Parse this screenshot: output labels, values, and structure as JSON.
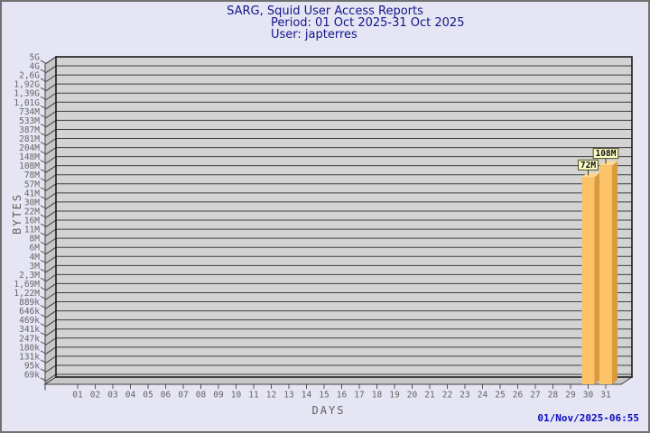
{
  "page": {
    "title_line1": "SARG, Squid User Access Reports",
    "title_line2": "Period: 01 Oct 2025-31 Oct 2025",
    "title_line3": "User: japterres",
    "generated_at": "01/Nov/2025-06:55"
  },
  "colors": {
    "background": "#e5e5f3",
    "page_border": "#717171",
    "title_text": "#15158c",
    "timestamp_text": "#0b0bc0",
    "axis_text": "#666666",
    "plot_face": "#d3d3d3",
    "plot_side": "#c7c7c7",
    "grid_line": "#3f3f3f",
    "plot_border": "#1c1c1c",
    "bar_front": "#fcc267",
    "bar_side": "#d89b3f",
    "bar_top": "#ffd991",
    "callout_bg": "#ffffc9",
    "callout_border": "#4a4a20",
    "callout_text": "#101010"
  },
  "chart_data": {
    "type": "bar",
    "title": "SARG, Squid User Access Reports",
    "subtitle1": "Period: 01 Oct 2025-31 Oct 2025",
    "subtitle2": "User: japterres",
    "xlabel": "DAYS",
    "ylabel": "BYTES",
    "y_scale": "log",
    "grid": true,
    "legend": "none",
    "y_range_bytes": [
      69000,
      5000000000
    ],
    "y_tick_labels": [
      "5G",
      "4G",
      "2,6G",
      "1,92G",
      "1,39G",
      "1,01G",
      "734M",
      "533M",
      "387M",
      "281M",
      "204M",
      "148M",
      "108M",
      "78M",
      "57M",
      "41M",
      "30M",
      "22M",
      "16M",
      "11M",
      "8M",
      "6M",
      "4M",
      "3M",
      "2,3M",
      "1,69M",
      "1,22M",
      "889k",
      "646k",
      "469k",
      "341k",
      "247k",
      "180k",
      "131k",
      "95k",
      "69k"
    ],
    "categories": [
      "01",
      "02",
      "03",
      "04",
      "05",
      "06",
      "07",
      "08",
      "09",
      "10",
      "11",
      "12",
      "13",
      "14",
      "15",
      "16",
      "17",
      "18",
      "19",
      "20",
      "21",
      "22",
      "23",
      "24",
      "25",
      "26",
      "27",
      "28",
      "29",
      "30",
      "31"
    ],
    "values": [
      0,
      0,
      0,
      0,
      0,
      0,
      0,
      0,
      0,
      0,
      0,
      0,
      0,
      0,
      0,
      0,
      0,
      0,
      0,
      0,
      0,
      0,
      0,
      0,
      0,
      0,
      0,
      0,
      0,
      72000000,
      108000000
    ],
    "value_labels": [
      "",
      "",
      "",
      "",
      "",
      "",
      "",
      "",
      "",
      "",
      "",
      "",
      "",
      "",
      "",
      "",
      "",
      "",
      "",
      "",
      "",
      "",
      "",
      "",
      "",
      "",
      "",
      "",
      "",
      "72M",
      "108M"
    ]
  }
}
